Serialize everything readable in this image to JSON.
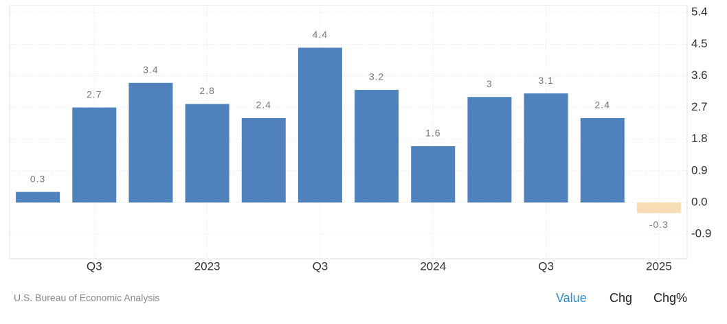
{
  "chart_data": {
    "type": "bar",
    "categories": [
      null,
      "Q3",
      null,
      "2023",
      null,
      "Q3",
      null,
      "2024",
      null,
      "Q3",
      null,
      "2025"
    ],
    "values": [
      0.3,
      2.7,
      3.4,
      2.8,
      2.4,
      4.4,
      3.2,
      1.6,
      3,
      3.1,
      2.4,
      -0.3
    ],
    "color": "#4f81bd",
    "negative_color": "#f6ddb4",
    "ylim": [
      -1.6,
      5.6
    ],
    "yticks": [
      -0.9,
      {
        "value": 0,
        "label": "0.0"
      },
      0.9,
      1.8,
      2.7,
      3.6,
      4.5,
      5.4
    ],
    "grid": true
  },
  "source": "U.S. Bureau of Economic Analysis",
  "buttons": [
    "Value",
    "Chg",
    "Chg%"
  ]
}
